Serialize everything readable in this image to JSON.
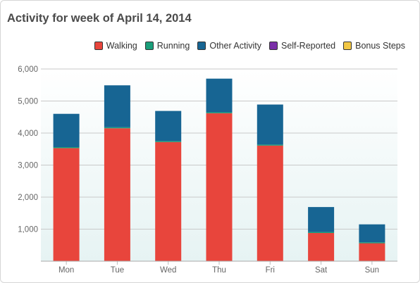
{
  "page": {
    "title": "Activity for week of April 14, 2014"
  },
  "chart_data": {
    "type": "bar",
    "stacked": true,
    "title": "Activity for week of April 14, 2014",
    "xlabel": "",
    "ylabel": "",
    "categories": [
      "Mon",
      "Tue",
      "Wed",
      "Thu",
      "Fri",
      "Sat",
      "Sun"
    ],
    "series": [
      {
        "name": "Walking",
        "color": "#e8453c",
        "values": [
          3530,
          4150,
          3720,
          4620,
          3610,
          880,
          560
        ]
      },
      {
        "name": "Running",
        "color": "#1a9e7a",
        "values": [
          30,
          30,
          30,
          30,
          30,
          30,
          30
        ]
      },
      {
        "name": "Other Activity",
        "color": "#176593",
        "values": [
          1040,
          1310,
          940,
          1050,
          1250,
          780,
          560
        ]
      },
      {
        "name": "Self-Reported",
        "color": "#7a2fa8",
        "values": [
          0,
          0,
          0,
          0,
          0,
          0,
          0
        ]
      },
      {
        "name": "Bonus Steps",
        "color": "#f2c744",
        "values": [
          0,
          0,
          0,
          0,
          0,
          0,
          0
        ]
      }
    ],
    "ylim": [
      0,
      6000
    ],
    "yticks": [
      0,
      1000,
      2000,
      3000,
      4000,
      5000,
      6000
    ],
    "ytick_labels": [
      "",
      "1,000",
      "2,000",
      "3,000",
      "4,000",
      "5,000",
      "6,000"
    ],
    "grid": true,
    "legend_position": "top-right"
  }
}
